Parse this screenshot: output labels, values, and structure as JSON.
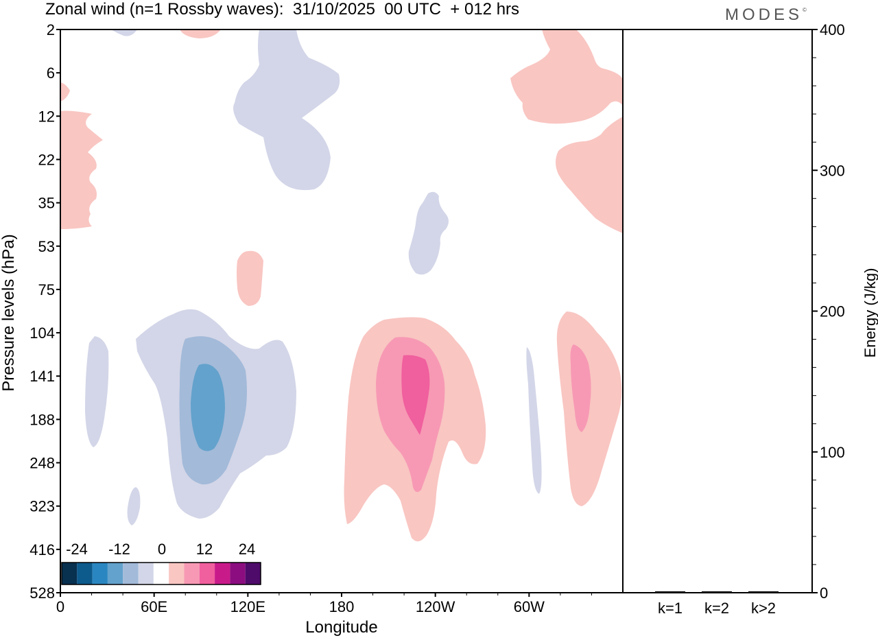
{
  "title": "Zonal wind (n=1 Rossby waves):  31/10/2025  00 UTC  + 012 hrs",
  "logo": "MODES",
  "logo_mark": "©",
  "chart_data": [
    {
      "type": "heatmap",
      "xlabel": "Longitude",
      "ylabel": "Pressure levels (hPa)",
      "x_ticks": [
        "0",
        "60E",
        "120E",
        "180",
        "120W",
        "60W"
      ],
      "x_tick_values": [
        0,
        60,
        120,
        180,
        240,
        300
      ],
      "xlim": [
        0,
        360
      ],
      "y_ticks": [
        "2",
        "6",
        "12",
        "22",
        "35",
        "53",
        "75",
        "104",
        "141",
        "188",
        "248",
        "323",
        "416",
        "528"
      ],
      "colorbar": {
        "labels": [
          "-24",
          "-12",
          "0",
          "12",
          "24"
        ],
        "colors": [
          "#08304f",
          "#0d5a8c",
          "#2a86c0",
          "#63a2cc",
          "#a3bad9",
          "#d3d6e8",
          "#ffffff",
          "#f9c6c2",
          "#f799b4",
          "#f05f9e",
          "#c91a8a",
          "#8c0d7f",
          "#4e0b6a"
        ]
      },
      "regions": [
        {
          "level": "#d3d6e8",
          "value": -6
        },
        {
          "level": "#a3bad9",
          "value": -12
        },
        {
          "level": "#63a2cc",
          "value": -18
        },
        {
          "level": "#f9c6c2",
          "value": 6
        },
        {
          "level": "#f799b4",
          "value": 12
        },
        {
          "level": "#f05f9e",
          "value": 18
        }
      ]
    },
    {
      "type": "bar",
      "categories": [
        "k=1",
        "k=2",
        "k>2"
      ],
      "values": [
        0.5,
        0.3,
        0.4
      ],
      "ylabel": "Energy (J/kg)",
      "ylim": [
        0,
        400
      ],
      "y_ticks": [
        "0",
        "100",
        "200",
        "300",
        "400"
      ]
    }
  ]
}
